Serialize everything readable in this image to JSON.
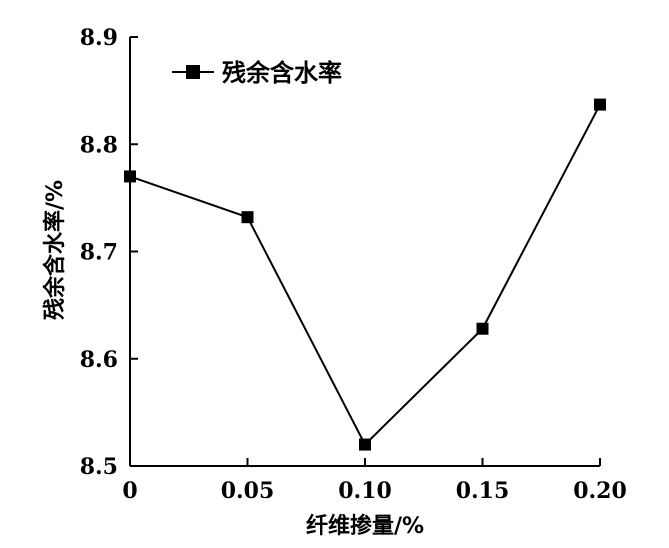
{
  "chart_data": {
    "type": "line",
    "x": [
      0,
      0.05,
      0.1,
      0.15,
      0.2
    ],
    "x_tick_labels": [
      "0",
      "0.05",
      "0.10",
      "0.15",
      "0.20"
    ],
    "series": [
      {
        "name": "残余含水率",
        "values": [
          8.77,
          8.732,
          8.52,
          8.628,
          8.837
        ],
        "marker": "square",
        "color": "#000000"
      }
    ],
    "xlabel": "纤维掺量/%",
    "ylabel": "残余含水率/%",
    "y_ticks": [
      8.5,
      8.6,
      8.7,
      8.8,
      8.9
    ],
    "y_tick_labels": [
      "8.5",
      "8.6",
      "8.7",
      "8.8",
      "8.9"
    ],
    "xlim": [
      0,
      0.2
    ],
    "ylim": [
      8.5,
      8.9
    ],
    "grid": false,
    "legend_position": "top-left"
  }
}
